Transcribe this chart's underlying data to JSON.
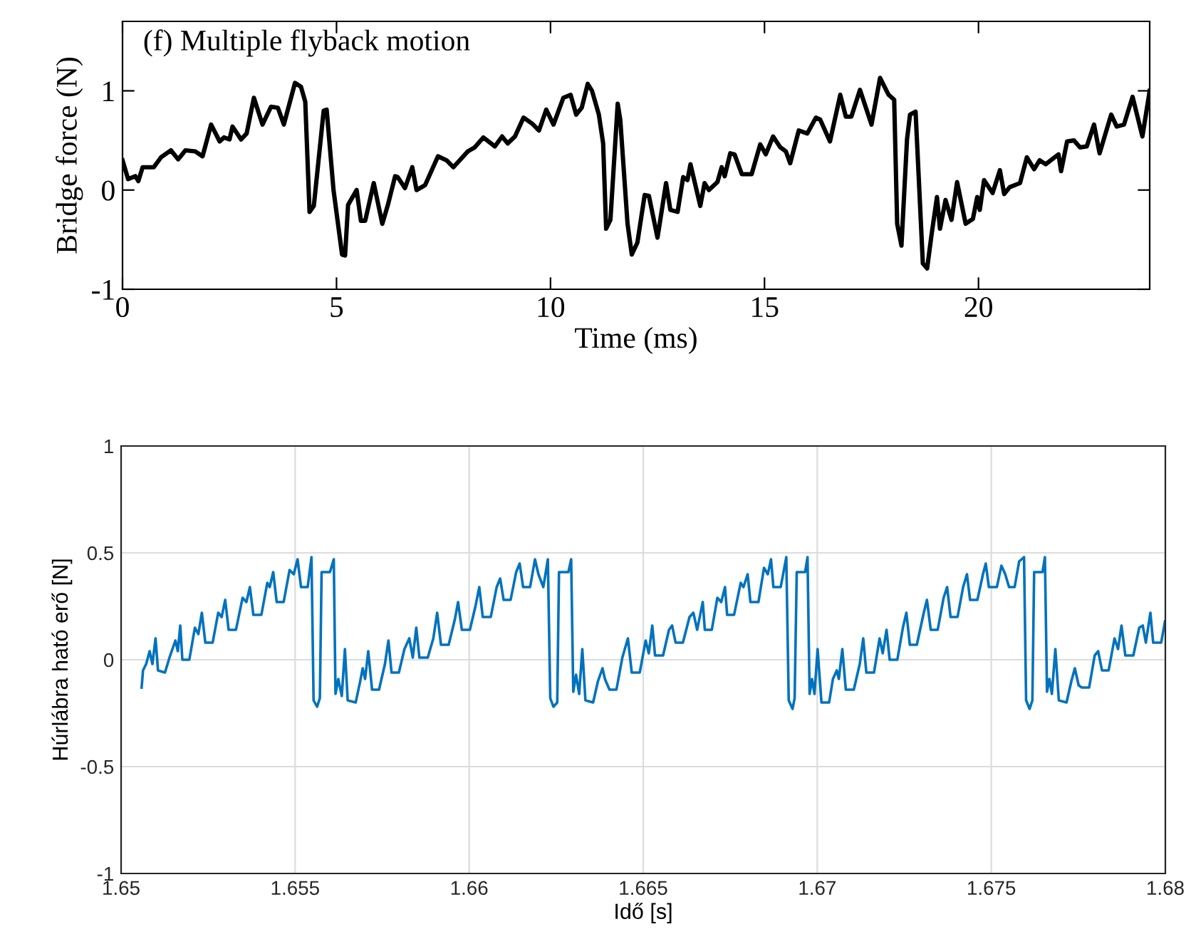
{
  "chart_data": [
    {
      "type": "line",
      "title": "(f) Multiple flyback motion",
      "xlabel": "Time (ms)",
      "ylabel": "Bridge force (N)",
      "xlim": [
        0,
        24
      ],
      "xticks": [
        0,
        5,
        10,
        15,
        20
      ],
      "ylim": [
        -1,
        1.7
      ],
      "yticks": [
        -1,
        0,
        1
      ],
      "grid": false,
      "legend": false,
      "series": [
        {
          "color": "#000000",
          "x": [
            0,
            0.13,
            0.3,
            0.37,
            0.47,
            0.73,
            0.9,
            1.13,
            1.3,
            1.47,
            1.7,
            1.87,
            2.07,
            2.27,
            2.37,
            2.5,
            2.57,
            2.77,
            2.9,
            3.07,
            3.27,
            3.47,
            3.63,
            3.77,
            4.03,
            4.17,
            4.27,
            4.37,
            4.47,
            4.7,
            4.77,
            4.93,
            5.13,
            5.2,
            5.27,
            5.47,
            5.57,
            5.67,
            5.87,
            6.07,
            6.2,
            6.37,
            6.43,
            6.6,
            6.77,
            6.87,
            7.07,
            7.37,
            7.57,
            7.73,
            8.07,
            8.23,
            8.43,
            8.7,
            8.87,
            9.0,
            9.17,
            9.37,
            9.57,
            9.73,
            9.9,
            10.07,
            10.3,
            10.47,
            10.6,
            10.73,
            10.87,
            10.97,
            11.13,
            11.23,
            11.3,
            11.4,
            11.57,
            11.63,
            11.8,
            11.9,
            12.03,
            12.2,
            12.3,
            12.5,
            12.7,
            12.8,
            12.97,
            13.1,
            13.2,
            13.27,
            13.5,
            13.6,
            13.7,
            13.9,
            14.0,
            14.07,
            14.2,
            14.3,
            14.47,
            14.7,
            14.9,
            15.03,
            15.2,
            15.37,
            15.5,
            15.6,
            15.8,
            16.0,
            16.2,
            16.3,
            16.53,
            16.77,
            16.9,
            17.03,
            17.23,
            17.5,
            17.7,
            17.9,
            18.03,
            18.1,
            18.2,
            18.33,
            18.4,
            18.53,
            18.7,
            18.8,
            18.9,
            19.03,
            19.1,
            19.23,
            19.37,
            19.5,
            19.7,
            19.87,
            19.97,
            20.03,
            20.13,
            20.33,
            20.5,
            20.6,
            20.73,
            20.97,
            21.13,
            21.3,
            21.43,
            21.57,
            21.87,
            21.93,
            22.07,
            22.23,
            22.37,
            22.53,
            22.7,
            22.83,
            23.1,
            23.23,
            23.4,
            23.6,
            23.83,
            24.0
          ],
          "values": [
            0.3,
            0.11,
            0.14,
            0.09,
            0.23,
            0.23,
            0.33,
            0.4,
            0.31,
            0.4,
            0.39,
            0.34,
            0.66,
            0.49,
            0.53,
            0.51,
            0.64,
            0.51,
            0.57,
            0.93,
            0.66,
            0.84,
            0.83,
            0.66,
            1.08,
            1.04,
            0.89,
            -0.22,
            -0.16,
            0.8,
            0.81,
            0,
            -0.65,
            -0.66,
            -0.15,
            0,
            -0.31,
            -0.31,
            0.07,
            -0.34,
            -0.15,
            0.14,
            0.13,
            0.02,
            0.23,
            0,
            0.05,
            0.34,
            0.3,
            0.23,
            0.39,
            0.43,
            0.53,
            0.44,
            0.54,
            0.47,
            0.54,
            0.73,
            0.67,
            0.6,
            0.81,
            0.66,
            0.93,
            0.96,
            0.76,
            0.83,
            1.07,
            1.0,
            0.76,
            0.47,
            -0.39,
            -0.3,
            0.87,
            0.71,
            -0.34,
            -0.65,
            -0.53,
            -0.05,
            -0.06,
            -0.48,
            0.07,
            -0.2,
            -0.22,
            0.13,
            0.1,
            0.26,
            -0.16,
            0.07,
            0,
            0.08,
            0.23,
            0.14,
            0.37,
            0.36,
            0.16,
            0.16,
            0.46,
            0.36,
            0.54,
            0.43,
            0.39,
            0.27,
            0.6,
            0.57,
            0.73,
            0.71,
            0.49,
            0.96,
            0.74,
            0.74,
            1.01,
            0.66,
            1.13,
            0.96,
            0.91,
            -0.34,
            -0.56,
            0.51,
            0.76,
            0.79,
            -0.74,
            -0.79,
            -0.46,
            -0.07,
            -0.39,
            -0.1,
            -0.3,
            0.08,
            -0.34,
            -0.29,
            -0.07,
            -0.2,
            0.1,
            -0.03,
            0.2,
            -0.04,
            0.03,
            0.07,
            0.33,
            0.21,
            0.3,
            0.26,
            0.36,
            0.19,
            0.49,
            0.5,
            0.43,
            0.44,
            0.66,
            0.37,
            0.76,
            0.64,
            0.66,
            0.94,
            0.54,
            1.0
          ]
        }
      ]
    },
    {
      "type": "line",
      "xlabel": "Idő [s]",
      "ylabel": "Húrlábra ható erő [N]",
      "xlim": [
        1.65,
        1.68
      ],
      "xticks": [
        1.65,
        1.655,
        1.66,
        1.665,
        1.67,
        1.675,
        1.68
      ],
      "ylim": [
        -1,
        1
      ],
      "yticks": [
        -1,
        -0.5,
        0,
        0.5,
        1
      ],
      "grid": true,
      "legend": false,
      "series": [
        {
          "color": "#0072bd",
          "x": [
            1.65059,
            1.65063,
            1.65072,
            1.65082,
            1.6509,
            1.65099,
            1.65106,
            1.65126,
            1.65139,
            1.65156,
            1.65163,
            1.6517,
            1.65176,
            1.65196,
            1.65212,
            1.65222,
            1.65232,
            1.65242,
            1.65263,
            1.65279,
            1.65289,
            1.65299,
            1.65309,
            1.6533,
            1.65349,
            1.6536,
            1.6537,
            1.6538,
            1.65403,
            1.6542,
            1.65427,
            1.65437,
            1.65447,
            1.65467,
            1.65484,
            1.65496,
            1.65507,
            1.65517,
            1.65536,
            1.65547,
            1.65553,
            1.65563,
            1.65571,
            1.65576,
            1.656,
            1.65611,
            1.65616,
            1.65624,
            1.65634,
            1.65643,
            1.65651,
            1.65674,
            1.65687,
            1.65694,
            1.65701,
            1.6571,
            1.65721,
            1.65741,
            1.65758,
            1.65768,
            1.65777,
            1.65798,
            1.65814,
            1.65828,
            1.65838,
            1.65848,
            1.65857,
            1.65881,
            1.65897,
            1.65908,
            1.65919,
            1.65941,
            1.65959,
            1.65968,
            1.65979,
            1.66002,
            1.66018,
            1.66029,
            1.66039,
            1.66062,
            1.66079,
            1.66089,
            1.66099,
            1.66119,
            1.66135,
            1.66145,
            1.66155,
            1.66175,
            1.66189,
            1.66199,
            1.66213,
            1.66226,
            1.66233,
            1.66242,
            1.66253,
            1.66258,
            1.66285,
            1.66293,
            1.66299,
            1.66307,
            1.66316,
            1.66325,
            1.66334,
            1.66356,
            1.6637,
            1.66383,
            1.6639,
            1.66403,
            1.66423,
            1.6644,
            1.66456,
            1.66467,
            1.6649,
            1.66507,
            1.66516,
            1.66526,
            1.66534,
            1.66557,
            1.66574,
            1.66583,
            1.66593,
            1.66614,
            1.66633,
            1.66644,
            1.66655,
            1.66671,
            1.66677,
            1.66697,
            1.66713,
            1.66724,
            1.66735,
            1.66741,
            1.66761,
            1.6678,
            1.66788,
            1.668,
            1.66808,
            1.66831,
            1.66847,
            1.66858,
            1.66867,
            1.66874,
            1.66895,
            1.66911,
            1.66918,
            1.66929,
            1.66935,
            1.66941,
            1.66965,
            1.66972,
            1.66978,
            1.66985,
            1.66992,
            1.67001,
            1.67012,
            1.67034,
            1.67045,
            1.67056,
            1.67062,
            1.67072,
            1.67082,
            1.67105,
            1.67122,
            1.67132,
            1.67141,
            1.67163,
            1.67179,
            1.67188,
            1.67199,
            1.67208,
            1.6723,
            1.67246,
            1.67256,
            1.67266,
            1.67286,
            1.67306,
            1.67315,
            1.67326,
            1.67346,
            1.67363,
            1.67373,
            1.67383,
            1.67403,
            1.67419,
            1.6743,
            1.67439,
            1.6746,
            1.67476,
            1.67484,
            1.67493,
            1.67516,
            1.67529,
            1.6754,
            1.67551,
            1.67567,
            1.6758,
            1.67594,
            1.676,
            1.6761,
            1.67618,
            1.67623,
            1.67647,
            1.67654,
            1.6766,
            1.67667,
            1.67674,
            1.67684,
            1.67694,
            1.67716,
            1.6773,
            1.6774,
            1.67751,
            1.6776,
            1.67781,
            1.67797,
            1.67807,
            1.67818,
            1.67837,
            1.67854,
            1.67864,
            1.67874,
            1.67885,
            1.67908,
            1.67925,
            1.67935,
            1.67944,
            1.67957,
            1.67965,
            1.67988,
            1.67999
          ],
          "values": [
            -0.13,
            -0.05,
            -0.02,
            0.04,
            -0.02,
            0.1,
            -0.05,
            -0.06,
            0.01,
            0.09,
            0.04,
            0.16,
            0.0,
            0.0,
            0.15,
            0.12,
            0.22,
            0.08,
            0.08,
            0.22,
            0.2,
            0.28,
            0.14,
            0.14,
            0.29,
            0.27,
            0.34,
            0.21,
            0.21,
            0.36,
            0.34,
            0.41,
            0.27,
            0.27,
            0.42,
            0.4,
            0.47,
            0.34,
            0.34,
            0.48,
            -0.19,
            -0.22,
            -0.18,
            0.41,
            0.41,
            0.47,
            -0.16,
            -0.09,
            -0.17,
            0.05,
            -0.19,
            -0.2,
            -0.1,
            -0.04,
            -0.09,
            0.04,
            -0.14,
            -0.14,
            -0.02,
            0.09,
            -0.06,
            -0.06,
            0.05,
            0.1,
            0.01,
            0.15,
            0.01,
            0.01,
            0.1,
            0.22,
            0.07,
            0.07,
            0.19,
            0.27,
            0.14,
            0.14,
            0.25,
            0.34,
            0.2,
            0.2,
            0.34,
            0.38,
            0.28,
            0.28,
            0.41,
            0.45,
            0.34,
            0.34,
            0.47,
            0.4,
            0.34,
            0.47,
            -0.18,
            -0.22,
            -0.2,
            0.41,
            0.41,
            0.47,
            -0.15,
            -0.07,
            -0.16,
            0.05,
            -0.19,
            -0.2,
            -0.1,
            -0.04,
            -0.09,
            -0.14,
            -0.14,
            0.01,
            0.1,
            -0.06,
            -0.06,
            0.09,
            0.03,
            0.16,
            0.02,
            0.02,
            0.14,
            0.16,
            0.08,
            0.08,
            0.2,
            0.22,
            0.14,
            0.27,
            0.14,
            0.14,
            0.29,
            0.27,
            0.34,
            0.21,
            0.21,
            0.36,
            0.34,
            0.4,
            0.27,
            0.27,
            0.43,
            0.4,
            0.47,
            0.34,
            0.34,
            0.48,
            -0.19,
            -0.23,
            -0.18,
            0.41,
            0.41,
            0.48,
            -0.16,
            -0.09,
            -0.16,
            0.05,
            -0.2,
            -0.2,
            -0.09,
            -0.05,
            -0.09,
            0.05,
            -0.14,
            -0.14,
            -0.02,
            0.1,
            -0.06,
            -0.06,
            0.1,
            0.03,
            0.14,
            0.0,
            0.0,
            0.15,
            0.22,
            0.07,
            0.07,
            0.22,
            0.28,
            0.14,
            0.14,
            0.29,
            0.34,
            0.2,
            0.2,
            0.34,
            0.4,
            0.28,
            0.28,
            0.4,
            0.45,
            0.34,
            0.34,
            0.44,
            0.4,
            0.34,
            0.34,
            0.46,
            0.48,
            -0.19,
            -0.23,
            -0.19,
            0.41,
            0.41,
            0.48,
            -0.15,
            -0.09,
            -0.16,
            0.05,
            -0.19,
            -0.2,
            -0.1,
            -0.04,
            -0.12,
            -0.13,
            -0.13,
            0.02,
            0.04,
            -0.05,
            -0.05,
            0.1,
            0.05,
            0.16,
            0.02,
            0.02,
            0.15,
            0.16,
            0.08,
            0.22,
            0.08,
            0.08,
            0.18
          ]
        }
      ]
    }
  ]
}
